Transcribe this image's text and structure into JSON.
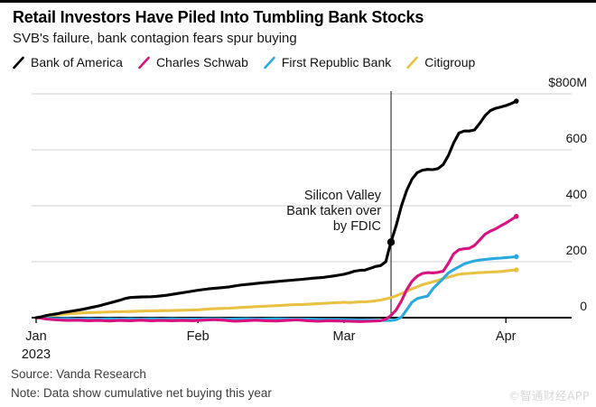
{
  "header": {
    "title": "Retail Investors Have Piled Into Tumbling Bank Stocks",
    "subtitle": "SVB's failure, bank contagion fears spur buying"
  },
  "legend": {
    "items": [
      {
        "label": "Bank of America",
        "color": "#000000"
      },
      {
        "label": "Charles Schwab",
        "color": "#d8127f"
      },
      {
        "label": "First Republic Bank",
        "color": "#28aae1"
      },
      {
        "label": "Citigroup",
        "color": "#e9c245"
      }
    ]
  },
  "chart_data": {
    "type": "line",
    "title": "Retail Investors Have Piled Into Tumbling Bank Stocks",
    "subtitle": "SVB's failure, bank contagion fears spur buying",
    "unit": "$M cumulative net buying",
    "grid": "horizontal",
    "legend_position": "top",
    "y_axis": {
      "side": "right",
      "ylim": [
        -25,
        800
      ],
      "ticks": [
        {
          "label": "$800M",
          "value": 800
        },
        {
          "label": "600",
          "value": 600
        },
        {
          "label": "400",
          "value": 400
        },
        {
          "label": "200",
          "value": 200
        },
        {
          "label": "0",
          "value": 0
        }
      ]
    },
    "x_axis": {
      "unit": "day-of-year 2023",
      "ticks": [
        {
          "label": "Jan",
          "sublabel": "2023",
          "day": 0
        },
        {
          "label": "Feb",
          "sublabel": "",
          "day": 31
        },
        {
          "label": "Mar",
          "sublabel": "",
          "day": 59
        },
        {
          "label": "Apr",
          "sublabel": "",
          "day": 90
        }
      ]
    },
    "annotation": {
      "lines": [
        "Silicon Valley",
        "Bank taken over",
        "by FDIC"
      ],
      "event_day": 68,
      "marker_series": "Bank of America"
    },
    "series": [
      {
        "name": "Citigroup",
        "color": "#e9c245",
        "points": [
          [
            0,
            0
          ],
          [
            1,
            4
          ],
          [
            3,
            8
          ],
          [
            5,
            12
          ],
          [
            7,
            15
          ],
          [
            9,
            17
          ],
          [
            12,
            19
          ],
          [
            15,
            21
          ],
          [
            18,
            22
          ],
          [
            21,
            24
          ],
          [
            24,
            25
          ],
          [
            27,
            26
          ],
          [
            31,
            28
          ],
          [
            33,
            31
          ],
          [
            35,
            33
          ],
          [
            37,
            34
          ],
          [
            39,
            36
          ],
          [
            41,
            38
          ],
          [
            43,
            40
          ],
          [
            45,
            42
          ],
          [
            47,
            44
          ],
          [
            49,
            46
          ],
          [
            51,
            47
          ],
          [
            53,
            49
          ],
          [
            55,
            51
          ],
          [
            57,
            53
          ],
          [
            58,
            54
          ],
          [
            59,
            55
          ],
          [
            60,
            54
          ],
          [
            61,
            55
          ],
          [
            62,
            57
          ],
          [
            63,
            56
          ],
          [
            64,
            58
          ],
          [
            65,
            60
          ],
          [
            66,
            63
          ],
          [
            67,
            67
          ],
          [
            68,
            72
          ],
          [
            69,
            78
          ],
          [
            70,
            86
          ],
          [
            71,
            95
          ],
          [
            72,
            103
          ],
          [
            73,
            110
          ],
          [
            74,
            118
          ],
          [
            75,
            123
          ],
          [
            76,
            128
          ],
          [
            77,
            133
          ],
          [
            78,
            140
          ],
          [
            79,
            145
          ],
          [
            80,
            150
          ],
          [
            81,
            155
          ],
          [
            82,
            157
          ],
          [
            83,
            158
          ],
          [
            84,
            160
          ],
          [
            85,
            161
          ],
          [
            86,
            162
          ],
          [
            87,
            163
          ],
          [
            88,
            164
          ],
          [
            89,
            165
          ],
          [
            90,
            167
          ],
          [
            91,
            169
          ],
          [
            92,
            171
          ]
        ]
      },
      {
        "name": "First Republic Bank",
        "color": "#28aae1",
        "points": [
          [
            0,
            0
          ],
          [
            2,
            -2
          ],
          [
            4,
            -4
          ],
          [
            6,
            -3
          ],
          [
            8,
            -5
          ],
          [
            10,
            -4
          ],
          [
            12,
            -5
          ],
          [
            14,
            -4
          ],
          [
            16,
            -5
          ],
          [
            18,
            -4
          ],
          [
            20,
            -5
          ],
          [
            22,
            -4
          ],
          [
            24,
            -5
          ],
          [
            26,
            -4
          ],
          [
            28,
            -5
          ],
          [
            31,
            -5
          ],
          [
            34,
            -4
          ],
          [
            37,
            -5
          ],
          [
            40,
            -4
          ],
          [
            43,
            -5
          ],
          [
            46,
            -4
          ],
          [
            49,
            -5
          ],
          [
            52,
            -5
          ],
          [
            55,
            -6
          ],
          [
            58,
            -6
          ],
          [
            60,
            -7
          ],
          [
            62,
            -8
          ],
          [
            64,
            -9
          ],
          [
            66,
            -10
          ],
          [
            68,
            -10
          ],
          [
            69,
            -7
          ],
          [
            70,
            2
          ],
          [
            71,
            28
          ],
          [
            72,
            55
          ],
          [
            73,
            68
          ],
          [
            74,
            73
          ],
          [
            75,
            77
          ],
          [
            76,
            103
          ],
          [
            77,
            122
          ],
          [
            78,
            140
          ],
          [
            79,
            160
          ],
          [
            80,
            172
          ],
          [
            81,
            182
          ],
          [
            82,
            192
          ],
          [
            83,
            198
          ],
          [
            84,
            203
          ],
          [
            85,
            206
          ],
          [
            86,
            208
          ],
          [
            87,
            210
          ],
          [
            88,
            212
          ],
          [
            89,
            213
          ],
          [
            90,
            215
          ],
          [
            91,
            216
          ],
          [
            92,
            218
          ]
        ]
      },
      {
        "name": "Charles Schwab",
        "color": "#d8127f",
        "points": [
          [
            0,
            0
          ],
          [
            1,
            -2
          ],
          [
            2,
            -5
          ],
          [
            4,
            -8
          ],
          [
            6,
            -10
          ],
          [
            8,
            -9
          ],
          [
            10,
            -11
          ],
          [
            12,
            -10
          ],
          [
            14,
            -12
          ],
          [
            16,
            -10
          ],
          [
            18,
            -11
          ],
          [
            20,
            -9
          ],
          [
            22,
            -11
          ],
          [
            24,
            -10
          ],
          [
            26,
            -11
          ],
          [
            28,
            -10
          ],
          [
            30,
            -11
          ],
          [
            32,
            -9
          ],
          [
            34,
            -7
          ],
          [
            36,
            -9
          ],
          [
            38,
            -13
          ],
          [
            40,
            -11
          ],
          [
            42,
            -9
          ],
          [
            44,
            -11
          ],
          [
            46,
            -12
          ],
          [
            48,
            -10
          ],
          [
            50,
            -8
          ],
          [
            52,
            -11
          ],
          [
            54,
            -13
          ],
          [
            56,
            -11
          ],
          [
            58,
            -12
          ],
          [
            60,
            -13
          ],
          [
            62,
            -14
          ],
          [
            64,
            -13
          ],
          [
            66,
            -11
          ],
          [
            67,
            -5
          ],
          [
            68,
            8
          ],
          [
            69,
            28
          ],
          [
            70,
            60
          ],
          [
            71,
            100
          ],
          [
            72,
            130
          ],
          [
            73,
            148
          ],
          [
            74,
            158
          ],
          [
            75,
            161
          ],
          [
            76,
            160
          ],
          [
            77,
            162
          ],
          [
            78,
            166
          ],
          [
            79,
            195
          ],
          [
            80,
            228
          ],
          [
            81,
            243
          ],
          [
            82,
            246
          ],
          [
            83,
            248
          ],
          [
            84,
            258
          ],
          [
            85,
            278
          ],
          [
            86,
            298
          ],
          [
            87,
            309
          ],
          [
            88,
            317
          ],
          [
            89,
            328
          ],
          [
            90,
            338
          ],
          [
            91,
            350
          ],
          [
            92,
            362
          ]
        ]
      },
      {
        "name": "Bank of America",
        "color": "#000000",
        "points": [
          [
            0,
            0
          ],
          [
            1,
            3
          ],
          [
            2,
            8
          ],
          [
            4,
            14
          ],
          [
            5,
            18
          ],
          [
            7,
            24
          ],
          [
            9,
            30
          ],
          [
            11,
            38
          ],
          [
            12,
            42
          ],
          [
            14,
            52
          ],
          [
            16,
            62
          ],
          [
            17,
            68
          ],
          [
            18,
            72
          ],
          [
            20,
            74
          ],
          [
            22,
            75
          ],
          [
            23,
            76
          ],
          [
            25,
            80
          ],
          [
            27,
            86
          ],
          [
            29,
            92
          ],
          [
            31,
            98
          ],
          [
            33,
            103
          ],
          [
            35,
            106
          ],
          [
            37,
            110
          ],
          [
            39,
            116
          ],
          [
            41,
            120
          ],
          [
            43,
            124
          ],
          [
            45,
            127
          ],
          [
            47,
            131
          ],
          [
            49,
            134
          ],
          [
            51,
            137
          ],
          [
            53,
            141
          ],
          [
            55,
            144
          ],
          [
            57,
            149
          ],
          [
            58,
            152
          ],
          [
            59,
            155
          ],
          [
            60,
            160
          ],
          [
            61,
            166
          ],
          [
            62,
            169
          ],
          [
            63,
            170
          ],
          [
            64,
            176
          ],
          [
            65,
            183
          ],
          [
            66,
            186
          ],
          [
            67,
            200
          ],
          [
            67.5,
            238
          ],
          [
            68,
            270
          ],
          [
            69,
            330
          ],
          [
            70,
            400
          ],
          [
            71,
            455
          ],
          [
            72,
            495
          ],
          [
            73,
            518
          ],
          [
            74,
            527
          ],
          [
            75,
            530
          ],
          [
            76,
            529
          ],
          [
            77,
            533
          ],
          [
            78,
            547
          ],
          [
            79,
            580
          ],
          [
            80,
            625
          ],
          [
            81,
            660
          ],
          [
            82,
            667
          ],
          [
            83,
            667
          ],
          [
            84,
            671
          ],
          [
            85,
            695
          ],
          [
            86,
            722
          ],
          [
            87,
            740
          ],
          [
            88,
            748
          ],
          [
            89,
            753
          ],
          [
            90,
            758
          ],
          [
            91,
            765
          ],
          [
            92,
            774
          ]
        ]
      }
    ]
  },
  "footer": {
    "source": "Source: Vanda Research",
    "note": "Note: Data show cumulative net buying this year"
  },
  "watermark": {
    "text": "©智通财经APP"
  }
}
